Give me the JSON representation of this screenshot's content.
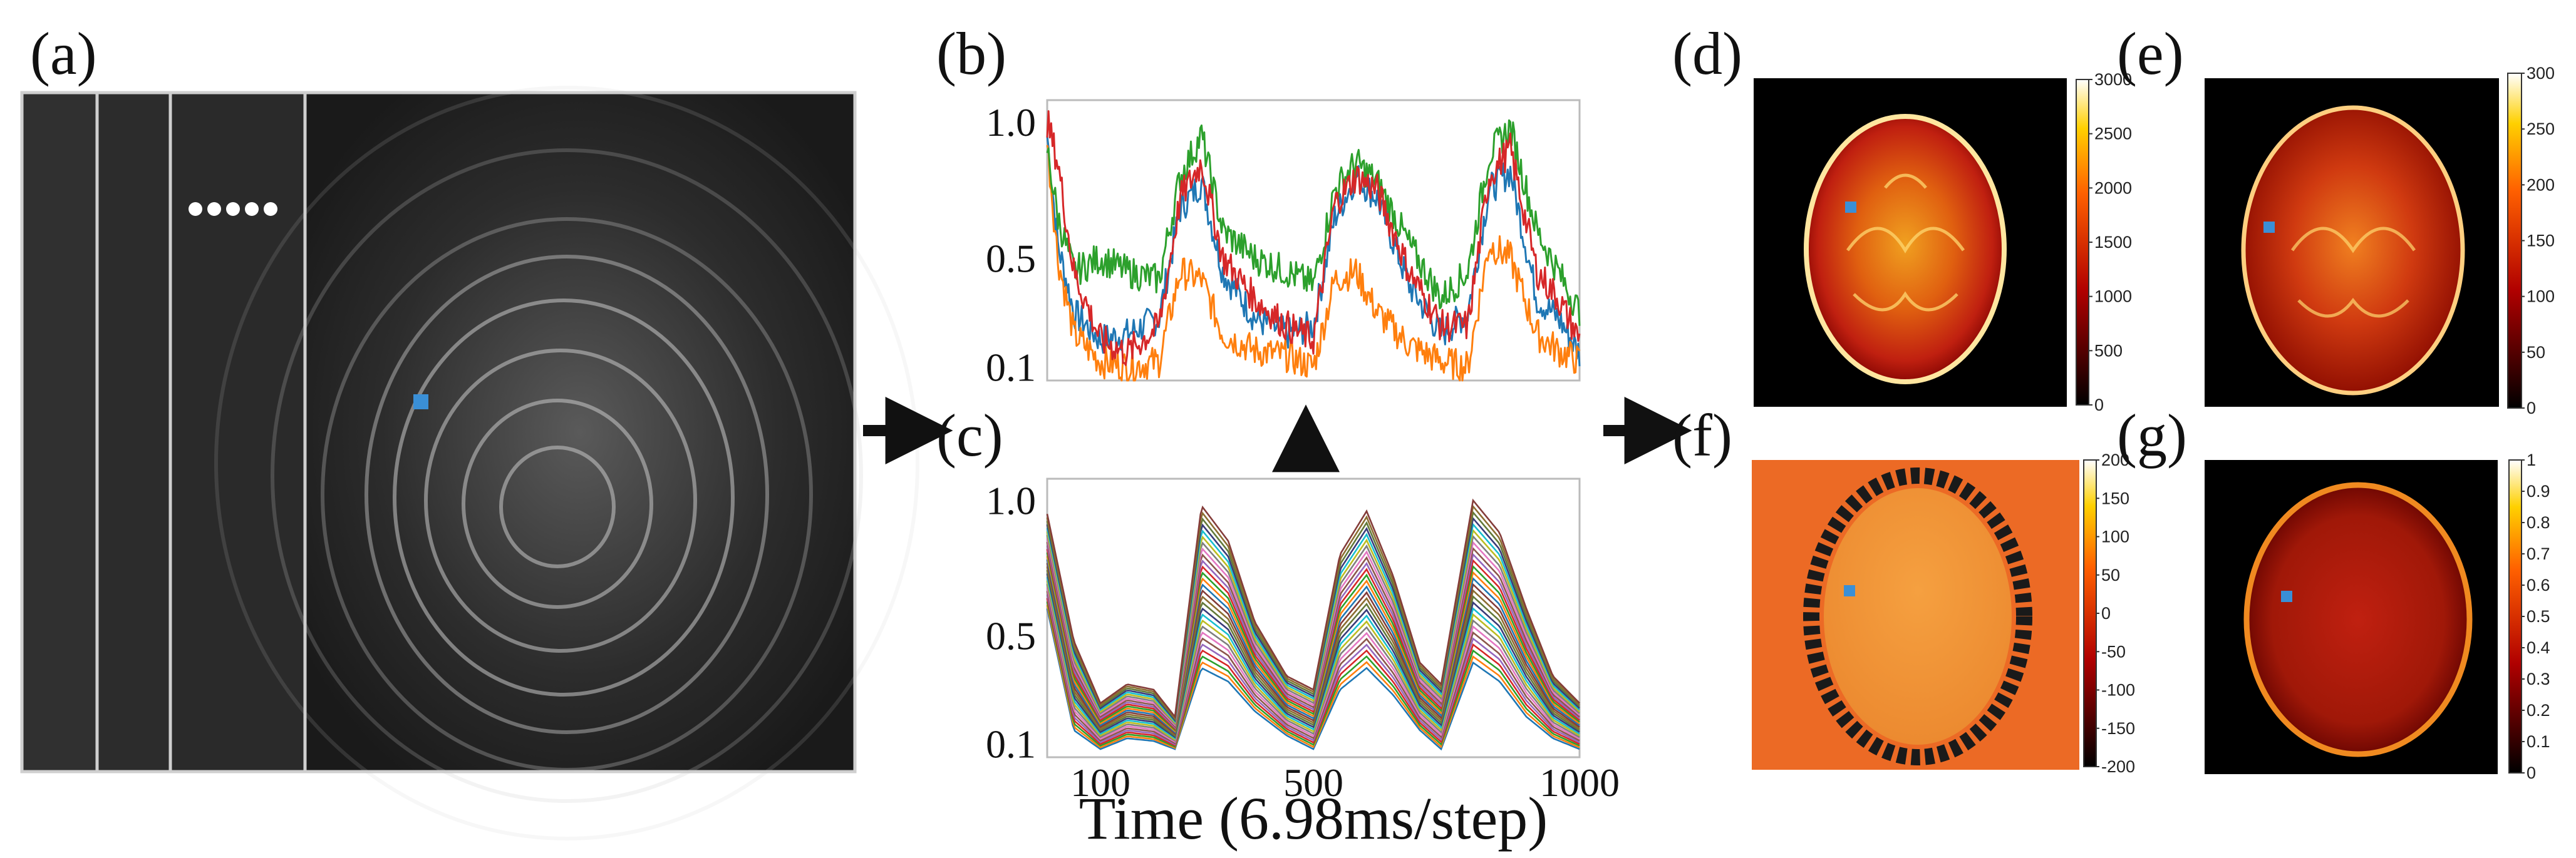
{
  "panel_labels": {
    "a": "(a)",
    "b": "(b)",
    "c": "(c)",
    "d": "(d)",
    "e": "(e)",
    "f": "(f)",
    "g": "(g)"
  },
  "accent_color": "#3a8fd6",
  "frames": {
    "count": 4,
    "dots_count": 5,
    "description_icon": "image-frames"
  },
  "chart_data": [
    {
      "panel": "b",
      "type": "line",
      "title": "",
      "xlabel": "",
      "ylabel": "",
      "xlim": [
        0,
        1000
      ],
      "ylim": [
        0.05,
        1.08
      ],
      "ytick_labels": [
        "1.0",
        "0.5",
        "0.1"
      ],
      "ytick_values": [
        1.0,
        0.5,
        0.1
      ],
      "xtick_labels": [],
      "series": [
        {
          "name": "blue",
          "color": "#1f77b4",
          "x": [
            0,
            20,
            50,
            100,
            150,
            210,
            250,
            290,
            330,
            390,
            450,
            500,
            540,
            580,
            620,
            680,
            740,
            790,
            830,
            870,
            920,
            960,
            1000
          ],
          "y": [
            0.95,
            0.55,
            0.3,
            0.2,
            0.22,
            0.28,
            0.68,
            0.78,
            0.45,
            0.28,
            0.22,
            0.25,
            0.65,
            0.8,
            0.72,
            0.4,
            0.22,
            0.3,
            0.75,
            0.82,
            0.35,
            0.28,
            0.15
          ]
        },
        {
          "name": "orange",
          "color": "#ff7f0e",
          "x": [
            0,
            20,
            50,
            100,
            150,
            210,
            250,
            290,
            330,
            390,
            450,
            500,
            540,
            580,
            620,
            680,
            740,
            790,
            830,
            870,
            920,
            960,
            1000
          ],
          "y": [
            0.92,
            0.5,
            0.22,
            0.12,
            0.1,
            0.12,
            0.45,
            0.42,
            0.22,
            0.16,
            0.14,
            0.1,
            0.42,
            0.45,
            0.3,
            0.18,
            0.12,
            0.1,
            0.55,
            0.5,
            0.22,
            0.16,
            0.12
          ]
        },
        {
          "name": "green",
          "color": "#2ca02c",
          "x": [
            0,
            20,
            50,
            100,
            150,
            210,
            250,
            290,
            330,
            390,
            450,
            500,
            540,
            580,
            620,
            680,
            740,
            790,
            830,
            870,
            920,
            960,
            1000
          ],
          "y": [
            0.9,
            0.65,
            0.45,
            0.5,
            0.45,
            0.42,
            0.8,
            0.95,
            0.6,
            0.5,
            0.45,
            0.4,
            0.75,
            0.85,
            0.78,
            0.55,
            0.35,
            0.45,
            0.88,
            0.98,
            0.6,
            0.45,
            0.3
          ]
        },
        {
          "name": "red",
          "color": "#d62728",
          "x": [
            0,
            20,
            50,
            100,
            150,
            210,
            250,
            290,
            330,
            390,
            450,
            500,
            540,
            580,
            620,
            680,
            740,
            790,
            830,
            870,
            920,
            960,
            1000
          ],
          "y": [
            1.0,
            0.85,
            0.45,
            0.2,
            0.15,
            0.25,
            0.72,
            0.85,
            0.5,
            0.35,
            0.25,
            0.2,
            0.7,
            0.8,
            0.75,
            0.45,
            0.25,
            0.25,
            0.8,
            0.9,
            0.45,
            0.35,
            0.2
          ]
        }
      ]
    },
    {
      "panel": "c",
      "type": "line",
      "title": "",
      "xlabel": "Time (6.98ms/step)",
      "ylabel": "",
      "xlim": [
        0,
        1000
      ],
      "ylim": [
        0.05,
        1.08
      ],
      "ytick_labels": [
        "1.0",
        "0.5",
        "0.1"
      ],
      "ytick_values": [
        1.0,
        0.5,
        0.1
      ],
      "xtick_labels": [
        "100",
        "500",
        "1000"
      ],
      "xtick_values": [
        100,
        500,
        1000
      ],
      "curve_count": 28,
      "series": [
        {
          "name": "top-envelope",
          "x": [
            0,
            50,
            100,
            150,
            200,
            240,
            290,
            340,
            390,
            450,
            500,
            550,
            600,
            650,
            700,
            740,
            800,
            850,
            900,
            950,
            1000
          ],
          "y": [
            0.95,
            0.48,
            0.25,
            0.32,
            0.3,
            0.2,
            0.98,
            0.85,
            0.55,
            0.35,
            0.3,
            0.8,
            0.96,
            0.72,
            0.4,
            0.32,
            1.0,
            0.88,
            0.6,
            0.35,
            0.25
          ]
        },
        {
          "name": "bottom-envelope",
          "x": [
            0,
            50,
            100,
            150,
            200,
            240,
            290,
            340,
            390,
            450,
            500,
            550,
            600,
            650,
            700,
            740,
            800,
            850,
            900,
            950,
            1000
          ],
          "y": [
            0.6,
            0.15,
            0.08,
            0.12,
            0.11,
            0.08,
            0.38,
            0.33,
            0.22,
            0.13,
            0.08,
            0.3,
            0.38,
            0.28,
            0.15,
            0.08,
            0.4,
            0.33,
            0.2,
            0.12,
            0.08
          ]
        }
      ]
    },
    {
      "panel": "d",
      "type": "heatmap",
      "colormap": "hot",
      "colorbar_ticks": [
        "3000",
        "2500",
        "2000",
        "1500",
        "1000",
        "500",
        "0"
      ],
      "colorbar_values": [
        3000,
        2500,
        2000,
        1500,
        1000,
        500,
        0
      ],
      "vmin": 0,
      "vmax": 3000
    },
    {
      "panel": "e",
      "type": "heatmap",
      "colormap": "hot",
      "colorbar_ticks": [
        "300",
        "250",
        "200",
        "150",
        "100",
        "50",
        "0"
      ],
      "colorbar_values": [
        300,
        250,
        200,
        150,
        100,
        50,
        0
      ],
      "vmin": 0,
      "vmax": 300
    },
    {
      "panel": "f",
      "type": "heatmap",
      "colormap": "hot",
      "colorbar_ticks": [
        "200",
        "150",
        "100",
        "50",
        "0",
        "-50",
        "-100",
        "-150",
        "-200"
      ],
      "colorbar_values": [
        200,
        150,
        100,
        50,
        0,
        -50,
        -100,
        -150,
        -200
      ],
      "vmin": -200,
      "vmax": 200
    },
    {
      "panel": "g",
      "type": "heatmap",
      "colormap": "hot",
      "colorbar_ticks": [
        "1",
        "0.9",
        "0.8",
        "0.7",
        "0.6",
        "0.5",
        "0.4",
        "0.3",
        "0.2",
        "0.1",
        "0"
      ],
      "colorbar_values": [
        1,
        0.9,
        0.8,
        0.7,
        0.6,
        0.5,
        0.4,
        0.3,
        0.2,
        0.1,
        0
      ],
      "vmin": 0,
      "vmax": 1
    }
  ]
}
